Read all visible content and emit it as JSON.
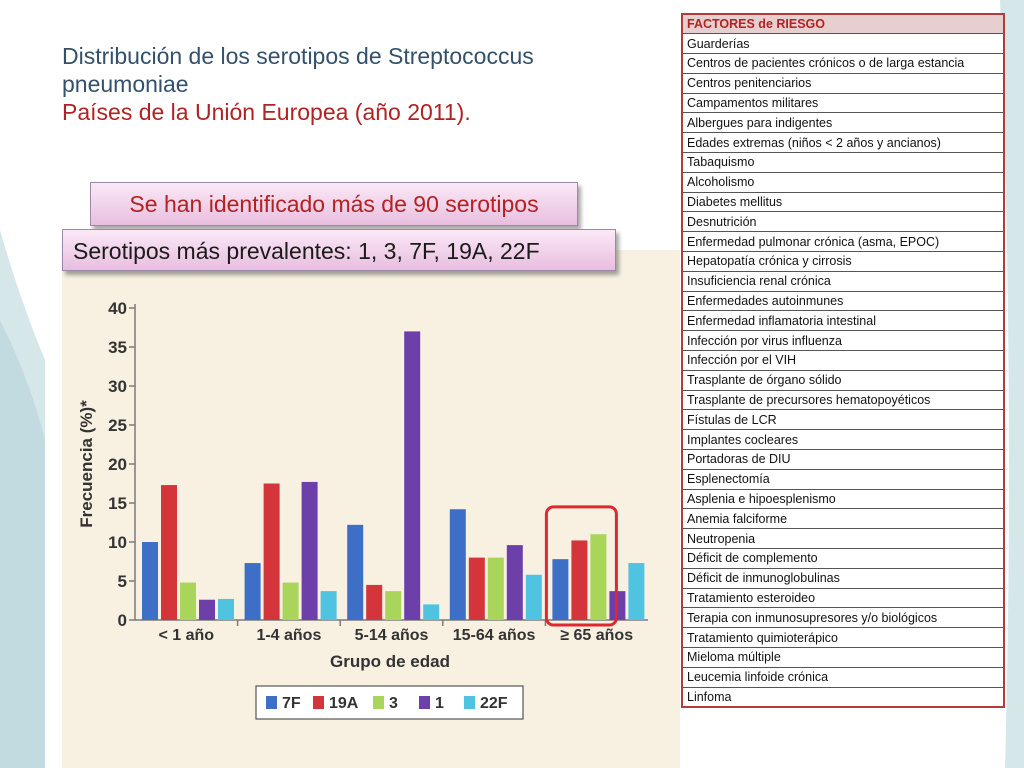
{
  "slide": {
    "title_line1": "Distribución de los serotipos de Streptococcus pneumoniae",
    "title_line2": "Países de la Unión Europea (año 2011).",
    "callout1": "Se han identificado más de 90 serotipos",
    "callout2": "Serotipos más prevalentes:  1, 3, 7F, 19A, 22F"
  },
  "risk_table": {
    "header": "FACTORES de RIESGO",
    "rows": [
      "Guarderías",
      "Centros de pacientes crónicos o de larga estancia",
      "Centros penitenciarios",
      "Campamentos militares",
      "Albergues para indigentes",
      "Edades extremas (niños < 2 años y ancianos)",
      "Tabaquismo",
      "Alcoholismo",
      "Diabetes mellitus",
      "Desnutrición",
      "Enfermedad pulmonar crónica (asma, EPOC)",
      "Hepatopatía crónica y cirrosis",
      "Insuficiencia renal crónica",
      "Enfermedades autoinmunes",
      "Enfermedad inflamatoria intestinal",
      "Infección por virus influenza",
      "Infección por el VIH",
      "Trasplante de órgano sólido",
      "Trasplante de precursores hematopoyéticos",
      "Fístulas de LCR",
      "Implantes cocleares",
      "Portadoras de DIU",
      "Esplenectomía",
      "Asplenia e hipoesplenismo",
      "Anemia falciforme",
      "Neutropenia",
      "Déficit de complemento",
      "Déficit de inmunoglobulinas",
      "Tratamiento esteroideo",
      "Terapia con inmunosupresores y/o biológicos",
      "Tratamiento quimioterápico",
      "Mieloma múltiple",
      "Leucemia linfoide crónica",
      "Linfoma"
    ]
  },
  "colors": {
    "s7F": "#3e6fc7",
    "s19A": "#d3353a",
    "s3": "#a9d55a",
    "s1": "#6d3fa8",
    "s22F": "#4fc3df",
    "highlight": "#e0262f"
  },
  "chart_data": {
    "type": "bar",
    "title": "",
    "xlabel": "Grupo de edad",
    "ylabel": "Frecuencia (%)*",
    "ylim": [
      0,
      40
    ],
    "yticks": [
      "0",
      "5",
      "10",
      "15",
      "20",
      "25",
      "30",
      "35",
      "40"
    ],
    "categories": [
      "< 1 año",
      "1-4 años",
      "5-14 años",
      "15-64 años",
      "≥ 65 años"
    ],
    "series": [
      {
        "name": "7F",
        "values": [
          10,
          7.3,
          12.2,
          14.2,
          7.8
        ]
      },
      {
        "name": "19A",
        "values": [
          17.3,
          17.5,
          4.5,
          8,
          10.2
        ]
      },
      {
        "name": "3",
        "values": [
          4.8,
          4.8,
          3.7,
          8,
          11
        ]
      },
      {
        "name": "1",
        "values": [
          2.6,
          17.7,
          37,
          9.6,
          3.7
        ]
      },
      {
        "name": "22F",
        "values": [
          2.7,
          3.7,
          2,
          5.8,
          7.3
        ]
      }
    ],
    "legend": [
      "7F",
      "19A",
      "3",
      "1",
      "22F"
    ],
    "highlighted_category": "≥ 65 años"
  }
}
